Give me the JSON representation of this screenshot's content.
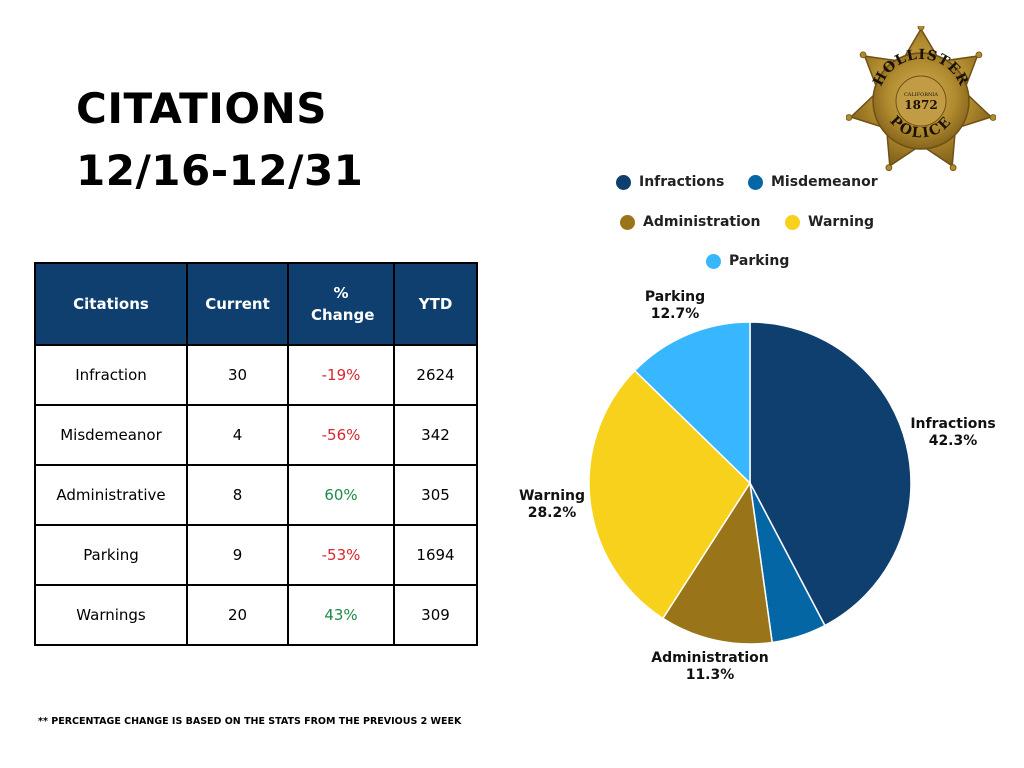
{
  "title": {
    "line1": "CITATIONS",
    "line2": "12/16-12/31"
  },
  "badge": {
    "arc_top": "HOLLISTER",
    "state": "CALIFORNIA",
    "year": "1872",
    "arc_bottom": "POLICE"
  },
  "table": {
    "headers": [
      "Citations",
      "Current",
      "% Change",
      "YTD"
    ],
    "rows": [
      {
        "name": "Infraction",
        "current": "30",
        "change": "-19%",
        "ytd": "2624",
        "trend": "negative"
      },
      {
        "name": "Misdemeanor",
        "current": "4",
        "change": "-56%",
        "ytd": "342",
        "trend": "negative"
      },
      {
        "name": "Administrative",
        "current": "8",
        "change": "60%",
        "ytd": "305",
        "trend": "positive"
      },
      {
        "name": "Parking",
        "current": "9",
        "change": "-53%",
        "ytd": "1694",
        "trend": "negative"
      },
      {
        "name": "Warnings",
        "current": "20",
        "change": "43%",
        "ytd": "309",
        "trend": "positive"
      }
    ]
  },
  "chart_data": {
    "type": "pie",
    "categories": [
      "Infractions",
      "Misdemeanor",
      "Administration",
      "Warning",
      "Parking"
    ],
    "values": [
      42.3,
      5.5,
      11.3,
      28.2,
      12.7
    ],
    "colors": [
      "#0f3f6f",
      "#0566a6",
      "#9a7419",
      "#f7d11c",
      "#38b6ff"
    ],
    "slice_labels": [
      {
        "name": "Infractions",
        "value": "42.3%"
      },
      {
        "name": "Administration",
        "value": "11.3%"
      },
      {
        "name": "Warning",
        "value": "28.2%"
      },
      {
        "name": "Parking",
        "value": "12.7%"
      }
    ],
    "legend": [
      "Infractions",
      "Misdemeanor",
      "Administration",
      "Warning",
      "Parking"
    ],
    "legend_position": "top"
  },
  "footnote": "** PERCENTAGE CHANGE IS BASED ON THE STATS FROM THE PREVIOUS 2 WEEK",
  "colors": {
    "header_bg": "#0f3f6f",
    "negative": "#d7262e",
    "positive": "#1e8a4a",
    "badge_gold": "#b08a2e"
  }
}
